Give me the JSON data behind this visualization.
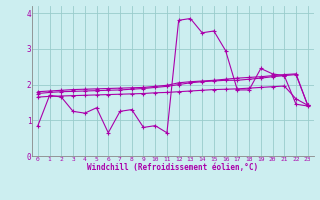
{
  "xlabel": "Windchill (Refroidissement éolien,°C)",
  "xlim": [
    -0.5,
    23.5
  ],
  "ylim": [
    0,
    4.2
  ],
  "yticks": [
    0,
    1,
    2,
    3,
    4
  ],
  "xticks": [
    0,
    1,
    2,
    3,
    4,
    5,
    6,
    7,
    8,
    9,
    10,
    11,
    12,
    13,
    14,
    15,
    16,
    17,
    18,
    19,
    20,
    21,
    22,
    23
  ],
  "bg_color": "#cceef0",
  "line_color": "#aa00aa",
  "grid_color": "#99cccc",
  "line1": [
    0.85,
    1.7,
    1.65,
    1.25,
    1.2,
    1.35,
    0.65,
    1.25,
    1.3,
    0.8,
    0.85,
    0.65,
    3.8,
    3.85,
    3.45,
    3.5,
    2.95,
    1.85,
    1.85,
    2.45,
    2.3,
    2.25,
    1.45,
    1.4
  ],
  "line2": [
    1.8,
    1.82,
    1.84,
    1.86,
    1.87,
    1.88,
    1.89,
    1.9,
    1.91,
    1.92,
    1.95,
    1.98,
    2.05,
    2.08,
    2.1,
    2.12,
    2.15,
    2.18,
    2.2,
    2.22,
    2.25,
    2.28,
    2.3,
    1.42
  ],
  "line3": [
    1.75,
    1.78,
    1.8,
    1.81,
    1.82,
    1.83,
    1.84,
    1.85,
    1.87,
    1.89,
    1.92,
    1.95,
    2.0,
    2.05,
    2.08,
    2.1,
    2.12,
    2.12,
    2.15,
    2.18,
    2.22,
    2.25,
    2.28,
    1.42
  ],
  "line4": [
    1.65,
    1.67,
    1.68,
    1.69,
    1.7,
    1.71,
    1.72,
    1.73,
    1.74,
    1.75,
    1.77,
    1.78,
    1.8,
    1.82,
    1.84,
    1.86,
    1.87,
    1.88,
    1.9,
    1.92,
    1.94,
    1.96,
    1.6,
    1.42
  ]
}
